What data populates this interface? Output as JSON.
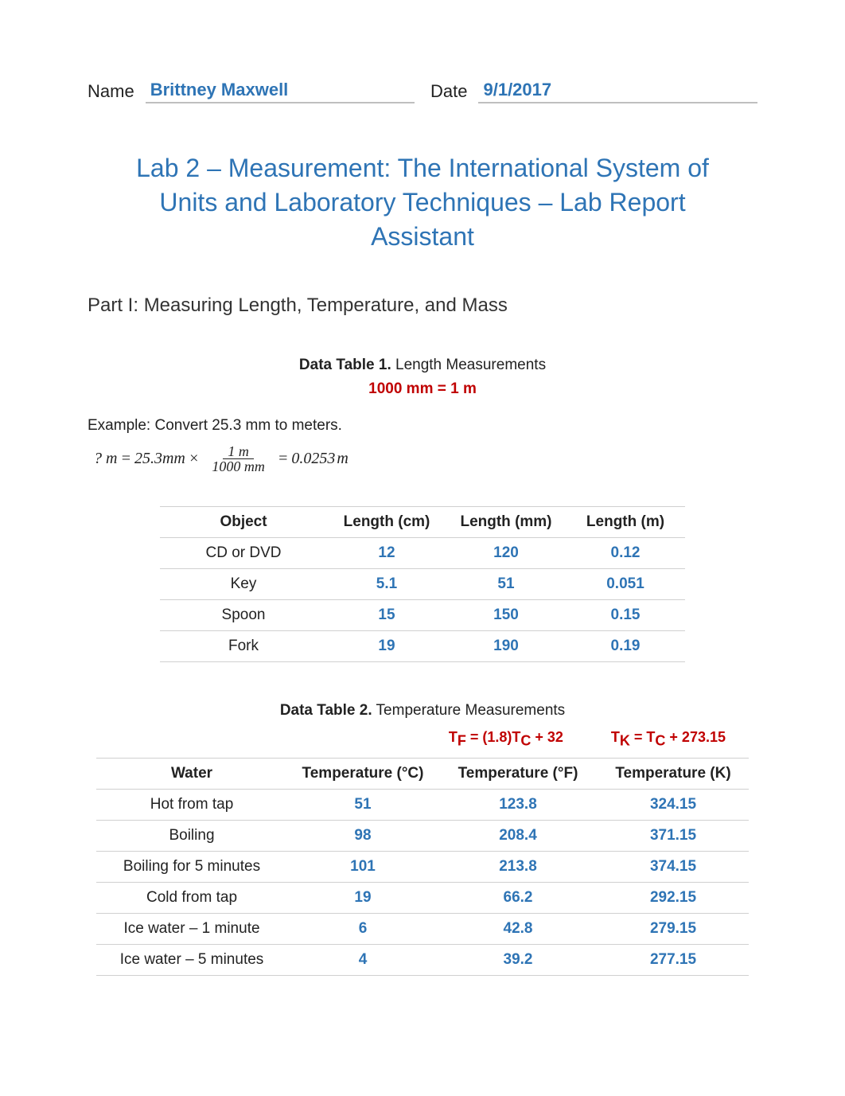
{
  "header": {
    "name_label": "Name",
    "name_value": "Brittney Maxwell",
    "date_label": "Date",
    "date_value": "9/1/2017"
  },
  "title": "Lab 2 – Measurement: The International System of Units and Laboratory Techniques – Lab Report Assistant",
  "part_heading": "Part I:  Measuring Length, Temperature, and Mass",
  "table1": {
    "caption_bold": "Data Table 1.",
    "caption_rest": " Length Measurements",
    "conversion_note": "1000 mm = 1 m",
    "example_text": "Example:  Convert 25.3 mm to meters.",
    "equation": {
      "lhs": "? m",
      "eq1": "=",
      "val": "25.3",
      "unit": "mm",
      "times": "×",
      "frac_num": "1 m",
      "frac_den": "1000 mm",
      "eq2": "=",
      "result": "0.0253",
      "result_unit": "m"
    },
    "columns": [
      "Object",
      "Length (cm)",
      "Length (mm)",
      "Length (m)"
    ],
    "rows": [
      [
        "CD or DVD",
        "12",
        "120",
        "0.12"
      ],
      [
        "Key",
        "5.1",
        "51",
        "0.051"
      ],
      [
        "Spoon",
        "15",
        "150",
        "0.15"
      ],
      [
        "Fork",
        "19",
        "190",
        "0.19"
      ]
    ],
    "col_widths": [
      "210px",
      "150px",
      "150px",
      "150px"
    ]
  },
  "table2": {
    "caption_bold": "Data Table 2.",
    "caption_rest": " Temperature Measurements",
    "formula_f": "T_F = (1.8)T_C + 32",
    "formula_k": "T_K = T_C + 273.15",
    "columns": [
      "Water",
      "Temperature (°C)",
      "Temperature (°F)",
      "Temperature (K)"
    ],
    "rows": [
      [
        "Hot from tap",
        "51",
        "123.8",
        "324.15"
      ],
      [
        "Boiling",
        "98",
        "208.4",
        "371.15"
      ],
      [
        "Boiling for 5 minutes",
        "101",
        "213.8",
        "374.15"
      ],
      [
        "Cold from tap",
        "19",
        "66.2",
        "292.15"
      ],
      [
        "Ice water – 1 minute",
        "6",
        "42.8",
        "279.15"
      ],
      [
        "Ice water – 5 minutes",
        "4",
        "39.2",
        "277.15"
      ]
    ],
    "col_widths": [
      "240px",
      "190px",
      "200px",
      "190px"
    ]
  },
  "colors": {
    "accent": "#2e74b5",
    "red": "#c00000",
    "text": "#222222",
    "rule": "#d0d0d0",
    "underline": "#bfbfbf"
  }
}
